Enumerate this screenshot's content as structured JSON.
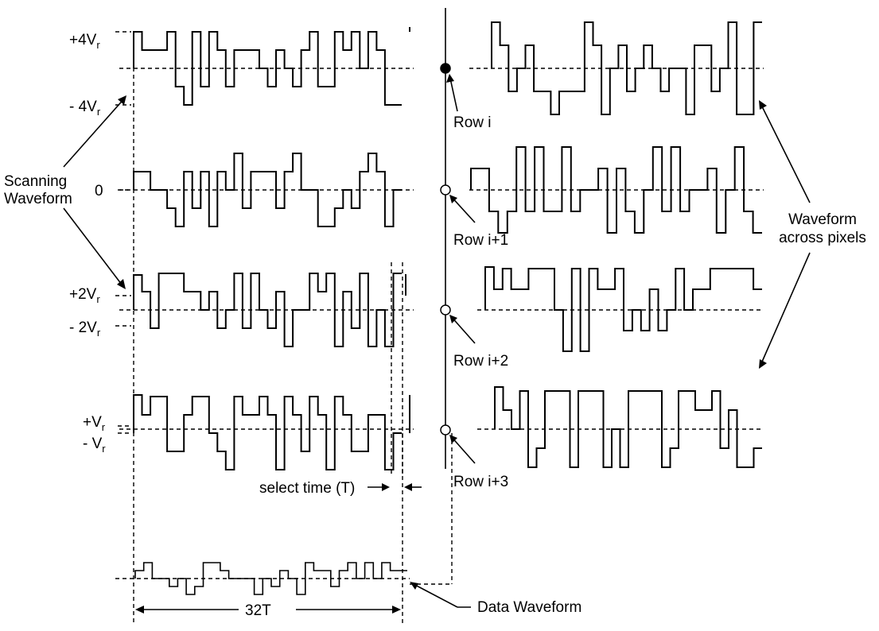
{
  "levels": {
    "plus4": "+4V",
    "minus4": "- 4V",
    "zero": "0",
    "plus2": "+2V",
    "minus2": "- 2V",
    "plus1": "+V",
    "minus1": "- V",
    "subscript": "r"
  },
  "labels": {
    "scanning_line1": "Scanning",
    "scanning_line2": "Waveform",
    "across_line1": "Waveform",
    "across_line2": "across pixels",
    "select_time": "select time (T)",
    "data_waveform": "Data Waveform",
    "period": "32T"
  },
  "rows": [
    {
      "label": "Row i",
      "state": "selected"
    },
    {
      "label": "Row i+1",
      "state": "unselected"
    },
    {
      "label": "Row i+2",
      "state": "unselected"
    },
    {
      "label": "Row i+3",
      "state": "unselected"
    }
  ]
}
